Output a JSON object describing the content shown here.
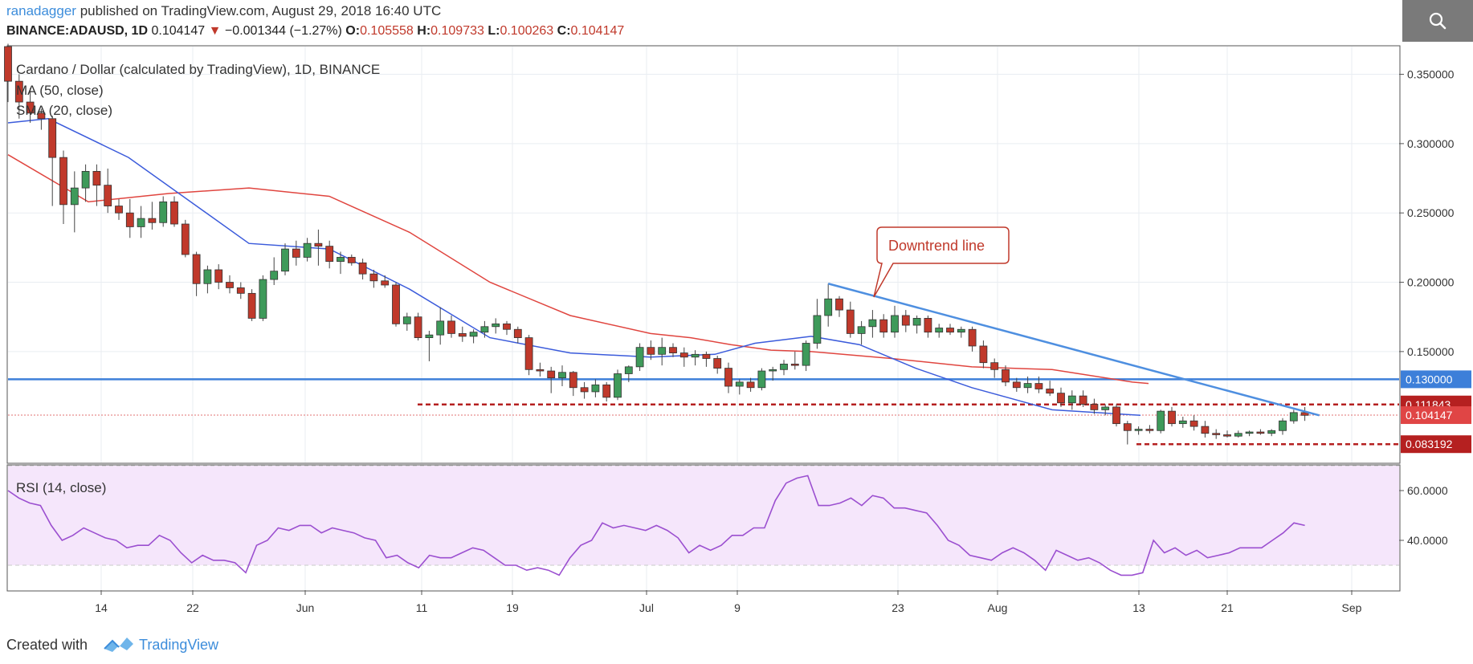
{
  "header": {
    "author": "ranadagger",
    "published": " published on TradingView.com, August 29, 2018 16:40 UTC",
    "symbol": "BINANCE:ADAUSD, 1D",
    "last": "0.104147",
    "change": "−0.001344 (−1.27%)",
    "o_label": "O:",
    "o_val": "0.105558",
    "h_label": "H:",
    "h_val": "0.109733",
    "l_label": "L:",
    "l_val": "0.100263",
    "c_label": "C:",
    "c_val": "0.104147"
  },
  "legend": {
    "title": "Cardano / Dollar (calculated by TradingView), 1D, BINANCE",
    "ma": "MA (50, close)",
    "sma": "SMA (20, close)"
  },
  "annotation": {
    "text": "Downtrend line"
  },
  "rsi_label": "RSI (14, close)",
  "footer": {
    "created": "Created with",
    "brand": "TradingView"
  },
  "colors": {
    "up": "#3e9a5a",
    "down": "#c0392b",
    "ma50": "#e0453f",
    "sma20": "#3b5bdb",
    "trend": "#4e8fe0",
    "support": "#3d7fd9",
    "rsi": "#9b4fd0",
    "rsi_band": "#f5e6fb",
    "price_label_red": "#b52020",
    "price_label_blue": "#3d7fd9"
  },
  "chart_data": [
    {
      "type": "candlestick",
      "title": "Cardano / Dollar (calculated by TradingView), 1D, BINANCE",
      "x_ticks": [
        "14",
        "22",
        "Jun",
        "11",
        "19",
        "Jul",
        "9",
        "23",
        "Aug",
        "13",
        "21",
        "Sep"
      ],
      "y_ticks": [
        "0.350000",
        "0.300000",
        "0.250000",
        "0.200000",
        "0.150000"
      ],
      "ylim": [
        0.07,
        0.37
      ],
      "ohlc_approx": [
        [
          0.37,
          0.372,
          0.33,
          0.345
        ],
        [
          0.345,
          0.35,
          0.318,
          0.33
        ],
        [
          0.33,
          0.34,
          0.315,
          0.322
        ],
        [
          0.322,
          0.325,
          0.31,
          0.318
        ],
        [
          0.318,
          0.32,
          0.255,
          0.29
        ],
        [
          0.29,
          0.295,
          0.242,
          0.256
        ],
        [
          0.256,
          0.28,
          0.236,
          0.268
        ],
        [
          0.268,
          0.285,
          0.258,
          0.28
        ],
        [
          0.28,
          0.285,
          0.255,
          0.27
        ],
        [
          0.27,
          0.282,
          0.25,
          0.255
        ],
        [
          0.255,
          0.26,
          0.245,
          0.25
        ],
        [
          0.25,
          0.26,
          0.232,
          0.24
        ],
        [
          0.24,
          0.255,
          0.232,
          0.246
        ],
        [
          0.246,
          0.258,
          0.238,
          0.243
        ],
        [
          0.243,
          0.262,
          0.24,
          0.258
        ],
        [
          0.258,
          0.262,
          0.24,
          0.242
        ],
        [
          0.242,
          0.245,
          0.218,
          0.22
        ],
        [
          0.22,
          0.222,
          0.19,
          0.199
        ],
        [
          0.199,
          0.212,
          0.192,
          0.209
        ],
        [
          0.209,
          0.213,
          0.195,
          0.2
        ],
        [
          0.2,
          0.205,
          0.192,
          0.196
        ],
        [
          0.196,
          0.2,
          0.188,
          0.192
        ],
        [
          0.192,
          0.195,
          0.172,
          0.174
        ],
        [
          0.174,
          0.205,
          0.172,
          0.202
        ],
        [
          0.202,
          0.218,
          0.198,
          0.208
        ],
        [
          0.208,
          0.228,
          0.205,
          0.224
        ],
        [
          0.224,
          0.23,
          0.212,
          0.218
        ],
        [
          0.218,
          0.232,
          0.215,
          0.228
        ],
        [
          0.228,
          0.238,
          0.212,
          0.226
        ],
        [
          0.226,
          0.23,
          0.21,
          0.215
        ],
        [
          0.215,
          0.222,
          0.206,
          0.218
        ],
        [
          0.218,
          0.22,
          0.212,
          0.214
        ],
        [
          0.214,
          0.217,
          0.202,
          0.206
        ],
        [
          0.206,
          0.209,
          0.196,
          0.201
        ],
        [
          0.201,
          0.205,
          0.196,
          0.198
        ],
        [
          0.198,
          0.2,
          0.168,
          0.17
        ],
        [
          0.17,
          0.178,
          0.165,
          0.175
        ],
        [
          0.175,
          0.178,
          0.158,
          0.16
        ],
        [
          0.16,
          0.165,
          0.143,
          0.162
        ],
        [
          0.162,
          0.182,
          0.155,
          0.172
        ],
        [
          0.172,
          0.176,
          0.16,
          0.163
        ],
        [
          0.163,
          0.168,
          0.157,
          0.161
        ],
        [
          0.161,
          0.166,
          0.156,
          0.164
        ],
        [
          0.164,
          0.172,
          0.16,
          0.168
        ],
        [
          0.168,
          0.174,
          0.163,
          0.17
        ],
        [
          0.17,
          0.172,
          0.162,
          0.166
        ],
        [
          0.166,
          0.168,
          0.156,
          0.16
        ],
        [
          0.16,
          0.162,
          0.133,
          0.137
        ],
        [
          0.137,
          0.142,
          0.132,
          0.136
        ],
        [
          0.136,
          0.139,
          0.12,
          0.131
        ],
        [
          0.131,
          0.14,
          0.125,
          0.135
        ],
        [
          0.135,
          0.136,
          0.118,
          0.124
        ],
        [
          0.124,
          0.128,
          0.116,
          0.121
        ],
        [
          0.121,
          0.13,
          0.117,
          0.126
        ],
        [
          0.126,
          0.128,
          0.114,
          0.117
        ],
        [
          0.117,
          0.137,
          0.115,
          0.134
        ],
        [
          0.134,
          0.14,
          0.128,
          0.139
        ],
        [
          0.139,
          0.156,
          0.136,
          0.153
        ],
        [
          0.153,
          0.158,
          0.144,
          0.148
        ],
        [
          0.148,
          0.16,
          0.14,
          0.153
        ],
        [
          0.153,
          0.156,
          0.146,
          0.149
        ],
        [
          0.149,
          0.153,
          0.139,
          0.146
        ],
        [
          0.146,
          0.151,
          0.14,
          0.148
        ],
        [
          0.148,
          0.15,
          0.139,
          0.145
        ],
        [
          0.145,
          0.147,
          0.134,
          0.138
        ],
        [
          0.138,
          0.142,
          0.12,
          0.125
        ],
        [
          0.125,
          0.13,
          0.119,
          0.128
        ],
        [
          0.128,
          0.131,
          0.121,
          0.124
        ],
        [
          0.124,
          0.138,
          0.122,
          0.136
        ],
        [
          0.136,
          0.139,
          0.129,
          0.137
        ],
        [
          0.137,
          0.144,
          0.133,
          0.141
        ],
        [
          0.141,
          0.15,
          0.137,
          0.14
        ],
        [
          0.14,
          0.158,
          0.136,
          0.156
        ],
        [
          0.156,
          0.188,
          0.152,
          0.176
        ],
        [
          0.176,
          0.199,
          0.168,
          0.188
        ],
        [
          0.188,
          0.19,
          0.175,
          0.18
        ],
        [
          0.18,
          0.186,
          0.16,
          0.163
        ],
        [
          0.163,
          0.172,
          0.155,
          0.168
        ],
        [
          0.168,
          0.18,
          0.16,
          0.173
        ],
        [
          0.173,
          0.177,
          0.16,
          0.164
        ],
        [
          0.164,
          0.183,
          0.16,
          0.176
        ],
        [
          0.176,
          0.18,
          0.164,
          0.169
        ],
        [
          0.169,
          0.176,
          0.163,
          0.174
        ],
        [
          0.174,
          0.176,
          0.16,
          0.164
        ],
        [
          0.164,
          0.17,
          0.16,
          0.167
        ],
        [
          0.167,
          0.17,
          0.162,
          0.164
        ],
        [
          0.164,
          0.168,
          0.16,
          0.166
        ],
        [
          0.166,
          0.168,
          0.15,
          0.154
        ],
        [
          0.154,
          0.158,
          0.138,
          0.142
        ],
        [
          0.142,
          0.145,
          0.131,
          0.137
        ],
        [
          0.137,
          0.14,
          0.125,
          0.128
        ],
        [
          0.128,
          0.131,
          0.121,
          0.124
        ],
        [
          0.124,
          0.132,
          0.12,
          0.127
        ],
        [
          0.127,
          0.132,
          0.12,
          0.123
        ],
        [
          0.123,
          0.129,
          0.118,
          0.12
        ],
        [
          0.12,
          0.124,
          0.11,
          0.113
        ],
        [
          0.113,
          0.122,
          0.108,
          0.118
        ],
        [
          0.118,
          0.122,
          0.11,
          0.112
        ],
        [
          0.112,
          0.116,
          0.105,
          0.108
        ],
        [
          0.108,
          0.112,
          0.104,
          0.11
        ],
        [
          0.11,
          0.112,
          0.096,
          0.098
        ],
        [
          0.098,
          0.1,
          0.083,
          0.093
        ],
        [
          0.093,
          0.096,
          0.09,
          0.094
        ],
        [
          0.094,
          0.097,
          0.091,
          0.093
        ],
        [
          0.093,
          0.108,
          0.091,
          0.107
        ],
        [
          0.107,
          0.11,
          0.096,
          0.098
        ],
        [
          0.098,
          0.103,
          0.095,
          0.1
        ],
        [
          0.1,
          0.104,
          0.093,
          0.096
        ],
        [
          0.096,
          0.1,
          0.088,
          0.091
        ],
        [
          0.091,
          0.094,
          0.087,
          0.09
        ],
        [
          0.09,
          0.093,
          0.088,
          0.089
        ],
        [
          0.089,
          0.093,
          0.088,
          0.091
        ],
        [
          0.091,
          0.093,
          0.089,
          0.092
        ],
        [
          0.092,
          0.094,
          0.09,
          0.091
        ],
        [
          0.091,
          0.094,
          0.089,
          0.093
        ],
        [
          0.093,
          0.102,
          0.09,
          0.1
        ],
        [
          0.1,
          0.108,
          0.098,
          0.106
        ],
        [
          0.106,
          0.11,
          0.1,
          0.104
        ]
      ],
      "ma50_series": [
        [
          0,
          0.292
        ],
        [
          100,
          0.258
        ],
        [
          200,
          0.264
        ],
        [
          300,
          0.268
        ],
        [
          400,
          0.262
        ],
        [
          500,
          0.236
        ],
        [
          600,
          0.2
        ],
        [
          700,
          0.176
        ],
        [
          800,
          0.163
        ],
        [
          850,
          0.16
        ],
        [
          900,
          0.155
        ],
        [
          950,
          0.151
        ],
        [
          1000,
          0.15
        ],
        [
          1100,
          0.145
        ],
        [
          1200,
          0.139
        ],
        [
          1300,
          0.137
        ],
        [
          1400,
          0.128
        ],
        [
          1420,
          0.127
        ]
      ],
      "sma20_series": [
        [
          0,
          0.315
        ],
        [
          50,
          0.318
        ],
        [
          150,
          0.29
        ],
        [
          300,
          0.228
        ],
        [
          400,
          0.224
        ],
        [
          500,
          0.195
        ],
        [
          600,
          0.16
        ],
        [
          700,
          0.149
        ],
        [
          800,
          0.146
        ],
        [
          880,
          0.148
        ],
        [
          930,
          0.156
        ],
        [
          1000,
          0.161
        ],
        [
          1060,
          0.155
        ],
        [
          1130,
          0.138
        ],
        [
          1200,
          0.124
        ],
        [
          1300,
          0.108
        ],
        [
          1410,
          0.104
        ]
      ],
      "levels": [
        {
          "value": 0.13,
          "label": "0.130000"
        },
        {
          "value": 0.111843,
          "label": "0.111843"
        },
        {
          "value": 0.104147,
          "label": "0.104147"
        },
        {
          "value": 0.083192,
          "label": "0.083192"
        }
      ],
      "trendline": {
        "from": 0.199,
        "to": 0.104
      }
    },
    {
      "type": "line",
      "title": "RSI (14, close)",
      "y_ticks": [
        "60.0000",
        "40.0000"
      ],
      "ylim": [
        20,
        70
      ],
      "values": [
        60,
        57,
        55,
        54,
        46,
        40,
        42,
        45,
        43,
        41,
        40,
        37,
        38,
        38,
        42,
        40,
        35,
        31,
        34,
        32,
        32,
        31,
        27,
        38,
        40,
        45,
        44,
        46,
        46,
        43,
        45,
        44,
        43,
        41,
        40,
        33,
        34,
        31,
        29,
        34,
        33,
        33,
        35,
        37,
        36,
        33,
        30,
        30,
        28,
        29,
        28,
        26,
        33,
        38,
        40,
        47,
        45,
        46,
        45,
        44,
        46,
        44,
        41,
        35,
        38,
        36,
        38,
        42,
        42,
        45,
        45,
        56,
        63,
        65,
        66,
        54,
        54,
        55,
        57,
        54,
        58,
        57,
        53,
        53,
        52,
        51,
        46,
        40,
        38,
        34,
        33,
        32,
        35,
        37,
        35,
        32,
        28,
        36,
        34,
        32,
        33,
        31,
        28,
        26,
        26,
        27,
        40,
        35,
        37,
        34,
        36,
        33,
        34,
        35,
        37,
        37,
        37,
        40,
        43,
        47,
        46
      ]
    }
  ]
}
